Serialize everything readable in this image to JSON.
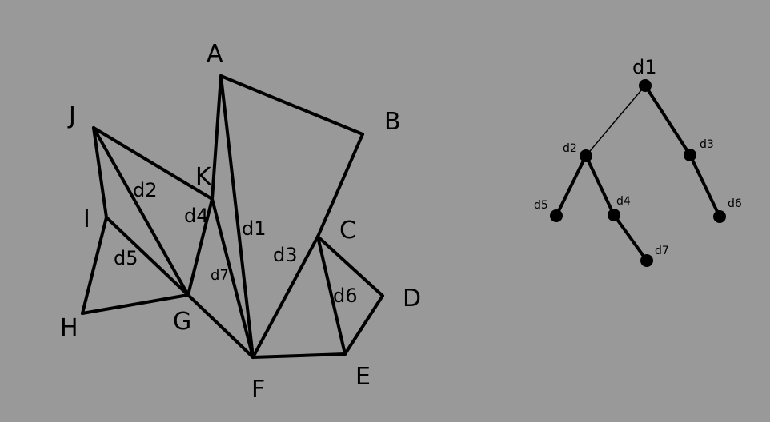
{
  "polygon": {
    "vertices": [
      "A",
      "B",
      "C",
      "D",
      "E",
      "F",
      "G",
      "H",
      "I",
      "J",
      "K"
    ],
    "diagonals": [
      "d1",
      "d2",
      "d3",
      "d4",
      "d5",
      "d6",
      "d7"
    ]
  },
  "tree": {
    "nodes": [
      "d1",
      "d2",
      "d3",
      "d4",
      "d5",
      "d6",
      "d7"
    ]
  },
  "colors": {
    "background": "#999999",
    "ink": "#000000"
  }
}
